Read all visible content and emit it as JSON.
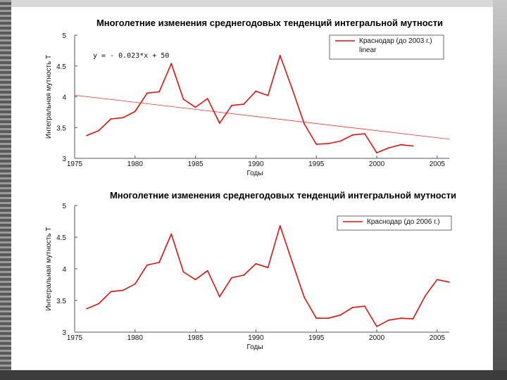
{
  "chart_data": [
    {
      "type": "line",
      "title": "Многолетние изменения среднегодовых тенденций интегральной мутности",
      "xlabel": "Годы",
      "ylabel": "Интегральная мутность Т",
      "xlim": [
        1975,
        2006
      ],
      "ylim": [
        3,
        5
      ],
      "x_ticks": [
        1975,
        1980,
        1985,
        1990,
        1995,
        2000,
        2005
      ],
      "y_ticks": [
        3,
        3.5,
        4,
        4.5,
        5
      ],
      "y_tick_labels": [
        "3",
        "3.5",
        "4",
        "4.5",
        "5"
      ],
      "grid": false,
      "legend_position": "top-right",
      "equation": "y = - 0.023*x + 50",
      "series": [
        {
          "name": "Краснодар (до 2003 г.)",
          "color": "#dd1111",
          "x": [
            1976,
            1977,
            1978,
            1979,
            1980,
            1981,
            1982,
            1983,
            1984,
            1985,
            1986,
            1987,
            1988,
            1989,
            1990,
            1991,
            1992,
            1993,
            1994,
            1995,
            1996,
            1997,
            1998,
            1999,
            2000,
            2001,
            2002,
            2003
          ],
          "y": [
            3.37,
            3.45,
            3.64,
            3.66,
            3.76,
            4.06,
            4.08,
            4.54,
            3.96,
            3.83,
            3.97,
            3.57,
            3.86,
            3.88,
            4.09,
            4.02,
            4.67,
            4.13,
            3.56,
            3.23,
            3.24,
            3.28,
            3.38,
            3.4,
            3.09,
            3.17,
            3.22,
            3.2
          ]
        },
        {
          "name": "linear",
          "color": "#ee3333",
          "x": [
            1975,
            2006
          ],
          "y": [
            4.025,
            3.312
          ]
        }
      ]
    },
    {
      "type": "line",
      "title": "Многолетние изменения среднегодовых тенденций интегральной мутности",
      "xlabel": "Годы",
      "ylabel": "Интегральная мутность Т",
      "xlim": [
        1975,
        2006
      ],
      "ylim": [
        3,
        5
      ],
      "x_ticks": [
        1975,
        1980,
        1985,
        1990,
        1995,
        2000,
        2005
      ],
      "y_ticks": [
        3,
        3.5,
        4,
        4.5,
        5
      ],
      "y_tick_labels": [
        "3",
        "3.5",
        "4",
        "4.5",
        "5"
      ],
      "grid": false,
      "legend_position": "top-right",
      "series": [
        {
          "name": "Краснодар (до 2006 г.)",
          "color": "#dd1111",
          "x": [
            1976,
            1977,
            1978,
            1979,
            1980,
            1981,
            1982,
            1983,
            1984,
            1985,
            1986,
            1987,
            1988,
            1989,
            1990,
            1991,
            1992,
            1993,
            1994,
            1995,
            1996,
            1997,
            1998,
            1999,
            2000,
            2001,
            2002,
            2003,
            2004,
            2005,
            2006
          ],
          "y": [
            3.37,
            3.45,
            3.64,
            3.66,
            3.76,
            4.06,
            4.1,
            4.55,
            3.95,
            3.83,
            3.97,
            3.56,
            3.86,
            3.9,
            4.08,
            4.02,
            4.68,
            4.11,
            3.55,
            3.22,
            3.22,
            3.27,
            3.39,
            3.41,
            3.09,
            3.19,
            3.22,
            3.21,
            3.57,
            3.83,
            3.79
          ]
        }
      ]
    }
  ]
}
